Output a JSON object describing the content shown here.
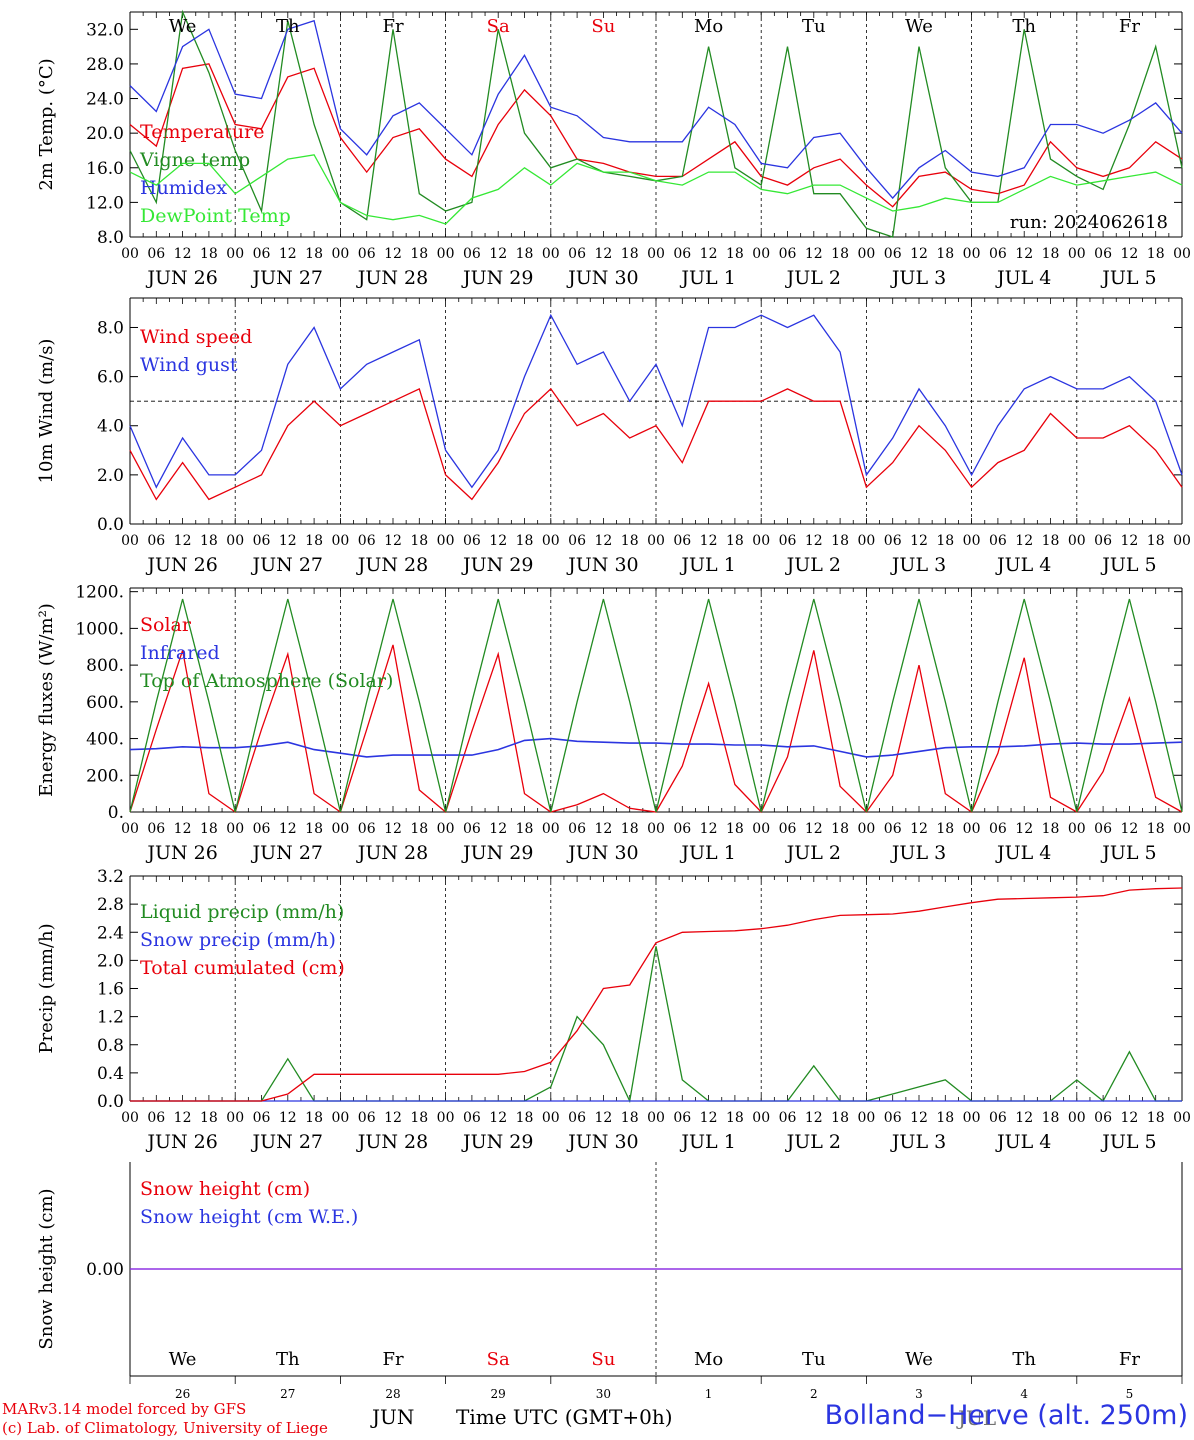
{
  "chart_data": [
    {
      "type": "line",
      "ylabel": "2m Temp. (°C)",
      "ylim": [
        8,
        34
      ],
      "yticks": [
        "8.0",
        "12.0",
        "16.0",
        "20.0",
        "24.0",
        "28.0",
        "32.0"
      ],
      "ytick_values": [
        8,
        12,
        16,
        20,
        24,
        28,
        32
      ],
      "x": [
        0,
        6,
        12,
        18,
        24,
        30,
        36,
        42,
        48,
        54,
        60,
        66,
        72,
        78,
        84,
        90,
        96,
        102,
        108,
        114,
        120,
        126,
        132,
        138,
        144,
        150,
        156,
        162,
        168,
        174,
        180,
        186,
        192,
        198,
        204,
        210,
        216,
        222,
        228,
        234,
        240
      ],
      "annotation": "run: 2024062618",
      "day_labels": [
        {
          "text": "We",
          "color": "#000000"
        },
        {
          "text": "Th",
          "color": "#000000"
        },
        {
          "text": "Fr",
          "color": "#000000"
        },
        {
          "text": "Sa",
          "color": "#e8000b"
        },
        {
          "text": "Su",
          "color": "#e8000b"
        },
        {
          "text": "Mo",
          "color": "#000000"
        },
        {
          "text": "Tu",
          "color": "#000000"
        },
        {
          "text": "We",
          "color": "#000000"
        },
        {
          "text": "Th",
          "color": "#000000"
        },
        {
          "text": "Fr",
          "color": "#000000"
        }
      ],
      "series": [
        {
          "name": "Temperature",
          "color": "#e8000b",
          "values": [
            21,
            18.5,
            27.5,
            28,
            21,
            20.5,
            26.5,
            27.5,
            19.5,
            15.5,
            19.5,
            20.5,
            17,
            15,
            21,
            25,
            22,
            17,
            16.5,
            15.5,
            15,
            15,
            17,
            19,
            15,
            14,
            16,
            17,
            14,
            11.5,
            15,
            15.5,
            13.5,
            13,
            14,
            19,
            16,
            15,
            16,
            19,
            17
          ]
        },
        {
          "name": "Vigne temp",
          "color": "#228b22",
          "values": [
            18,
            12,
            34,
            27,
            18,
            11,
            33,
            21,
            12,
            10,
            32,
            13,
            11,
            12,
            32,
            20,
            16,
            17,
            15.5,
            15,
            14.5,
            15,
            30,
            16,
            14,
            30,
            13,
            13,
            9,
            8,
            30,
            16,
            12,
            12,
            32,
            17,
            15,
            13.5,
            21,
            30,
            16
          ]
        },
        {
          "name": "Humidex",
          "color": "#2b35e0",
          "values": [
            25.5,
            22.5,
            30,
            32,
            24.5,
            24,
            32,
            33,
            20.5,
            17.5,
            22,
            23.5,
            20.5,
            17.5,
            24.5,
            29,
            23,
            22,
            19.5,
            19,
            19,
            19,
            23,
            21,
            16.5,
            16,
            19.5,
            20,
            16,
            12.5,
            16,
            18,
            15.5,
            15,
            16,
            21,
            21,
            20,
            21.5,
            23.5,
            20
          ]
        },
        {
          "name": "DewPoint Temp",
          "color": "#35e835",
          "values": [
            15.5,
            14,
            16.5,
            16.5,
            13,
            15,
            17,
            17.5,
            12,
            10.5,
            10,
            10.5,
            9.5,
            12.5,
            13.5,
            16,
            14,
            16.5,
            15.5,
            15.5,
            14.5,
            14,
            15.5,
            15.5,
            13.5,
            13,
            14,
            14,
            12.5,
            11,
            11.5,
            12.5,
            12,
            12,
            13.5,
            15,
            14,
            14.5,
            15,
            15.5,
            14
          ]
        }
      ]
    },
    {
      "type": "line",
      "ylabel": "10m Wind (m/s)",
      "ylim": [
        0,
        9.2
      ],
      "yticks": [
        "0.0",
        "2.0",
        "4.0",
        "6.0",
        "8.0"
      ],
      "ytick_values": [
        0,
        2,
        4,
        6,
        8
      ],
      "reference_line": 5,
      "x": [
        0,
        6,
        12,
        18,
        24,
        30,
        36,
        42,
        48,
        54,
        60,
        66,
        72,
        78,
        84,
        90,
        96,
        102,
        108,
        114,
        120,
        126,
        132,
        138,
        144,
        150,
        156,
        162,
        168,
        174,
        180,
        186,
        192,
        198,
        204,
        210,
        216,
        222,
        228,
        234,
        240
      ],
      "series": [
        {
          "name": "Wind speed",
          "color": "#e8000b",
          "values": [
            3,
            1,
            2.5,
            1,
            1.5,
            2,
            4,
            5,
            4,
            4.5,
            5,
            5.5,
            2,
            1,
            2.5,
            4.5,
            5.5,
            4,
            4.5,
            3.5,
            4,
            2.5,
            5,
            5,
            5,
            5.5,
            5,
            5,
            1.5,
            2.5,
            4,
            3,
            1.5,
            2.5,
            3,
            4.5,
            3.5,
            3.5,
            4,
            3,
            1.5
          ]
        },
        {
          "name": "Wind gust",
          "color": "#2b35e0",
          "values": [
            4,
            1.5,
            3.5,
            2,
            2,
            3,
            6.5,
            8,
            5.5,
            6.5,
            7,
            7.5,
            3,
            1.5,
            3,
            6,
            8.5,
            6.5,
            7,
            5,
            6.5,
            4,
            8,
            8,
            8.5,
            8,
            8.5,
            7,
            2,
            3.5,
            5.5,
            4,
            2,
            4,
            5.5,
            6,
            5.5,
            5.5,
            6,
            5,
            2
          ]
        }
      ]
    },
    {
      "type": "line",
      "ylabel": "Energy fluxes (W/m²)",
      "ylim": [
        0,
        1220
      ],
      "yticks": [
        "0.",
        "200.",
        "400.",
        "600.",
        "800.",
        "1000.",
        "1200."
      ],
      "ytick_values": [
        0,
        200,
        400,
        600,
        800,
        1000,
        1200
      ],
      "x": [
        0,
        6,
        12,
        18,
        24,
        30,
        36,
        42,
        48,
        54,
        60,
        66,
        72,
        78,
        84,
        90,
        96,
        102,
        108,
        114,
        120,
        126,
        132,
        138,
        144,
        150,
        156,
        162,
        168,
        174,
        180,
        186,
        192,
        198,
        204,
        210,
        216,
        222,
        228,
        234,
        240
      ],
      "series": [
        {
          "name": "Solar",
          "color": "#e8000b",
          "values": [
            0,
            450,
            880,
            100,
            0,
            450,
            860,
            100,
            0,
            450,
            910,
            120,
            0,
            440,
            860,
            100,
            0,
            40,
            100,
            20,
            0,
            250,
            700,
            150,
            0,
            300,
            880,
            140,
            0,
            200,
            800,
            100,
            0,
            320,
            840,
            80,
            0,
            220,
            620,
            80,
            0
          ]
        },
        {
          "name": "Infrared",
          "color": "#2b35e0",
          "values": [
            340,
            345,
            355,
            350,
            350,
            360,
            380,
            340,
            320,
            300,
            310,
            310,
            310,
            310,
            340,
            390,
            400,
            385,
            380,
            375,
            375,
            370,
            370,
            365,
            365,
            355,
            360,
            330,
            300,
            310,
            330,
            350,
            355,
            355,
            360,
            370,
            375,
            370,
            370,
            375,
            380
          ]
        },
        {
          "name": "Top of Atmosphere (Solar)",
          "color": "#228b22",
          "values": [
            0,
            600,
            1160,
            600,
            0,
            600,
            1160,
            600,
            0,
            600,
            1160,
            600,
            0,
            600,
            1160,
            600,
            0,
            600,
            1160,
            600,
            0,
            600,
            1160,
            600,
            0,
            600,
            1160,
            600,
            0,
            600,
            1160,
            600,
            0,
            600,
            1160,
            600,
            0,
            600,
            1160,
            600,
            0
          ]
        }
      ]
    },
    {
      "type": "line",
      "ylabel": "Precip (mm/h)",
      "ylim": [
        0,
        3.2
      ],
      "yticks": [
        "0.0",
        "0.4",
        "0.8",
        "1.2",
        "1.6",
        "2.0",
        "2.4",
        "2.8",
        "3.2"
      ],
      "ytick_values": [
        0,
        0.4,
        0.8,
        1.2,
        1.6,
        2.0,
        2.4,
        2.8,
        3.2
      ],
      "x": [
        0,
        6,
        12,
        18,
        24,
        30,
        36,
        42,
        48,
        54,
        60,
        66,
        72,
        78,
        84,
        90,
        96,
        102,
        108,
        114,
        120,
        126,
        132,
        138,
        144,
        150,
        156,
        162,
        168,
        174,
        180,
        186,
        192,
        198,
        204,
        210,
        216,
        222,
        228,
        234,
        240
      ],
      "series": [
        {
          "name": "Liquid precip (mm/h)",
          "color": "#228b22",
          "values": [
            0,
            0,
            0,
            0,
            0,
            0,
            0.6,
            0,
            0,
            0,
            0,
            0,
            0,
            0,
            0,
            0,
            0.2,
            1.2,
            0.8,
            0,
            2.2,
            0.3,
            0,
            0,
            0,
            0,
            0.5,
            0,
            0,
            0.1,
            0.2,
            0.3,
            0,
            0,
            0,
            0,
            0.3,
            0,
            0.7,
            0,
            0
          ]
        },
        {
          "name": "Snow precip (mm/h)",
          "color": "#2b35e0",
          "values": [
            0,
            0,
            0,
            0,
            0,
            0,
            0,
            0,
            0,
            0,
            0,
            0,
            0,
            0,
            0,
            0,
            0,
            0,
            0,
            0,
            0,
            0,
            0,
            0,
            0,
            0,
            0,
            0,
            0,
            0,
            0,
            0,
            0,
            0,
            0,
            0,
            0,
            0,
            0,
            0,
            0
          ]
        },
        {
          "name": "Total cumulated (cm)",
          "color": "#e8000b",
          "values": [
            0,
            0,
            0,
            0,
            0,
            0,
            0.1,
            0.38,
            0.38,
            0.38,
            0.38,
            0.38,
            0.38,
            0.38,
            0.38,
            0.42,
            0.55,
            1.0,
            1.6,
            1.65,
            2.25,
            2.4,
            2.41,
            2.42,
            2.45,
            2.5,
            2.58,
            2.64,
            2.65,
            2.66,
            2.7,
            2.76,
            2.82,
            2.87,
            2.88,
            2.89,
            2.9,
            2.92,
            3.0,
            3.02,
            3.03
          ]
        }
      ]
    },
    {
      "type": "line",
      "ylabel": "Snow height (cm)",
      "ylim": [
        -1,
        1
      ],
      "yticks": [
        "0.00"
      ],
      "ytick_values": [
        0
      ],
      "x": [
        0,
        240
      ],
      "series": [
        {
          "name": "Snow height (cm)",
          "color": "#e8000b",
          "values": [
            0,
            0
          ]
        },
        {
          "name": "Snow height (cm W.E.)",
          "color": "#2b35e0",
          "values": [
            0,
            0
          ]
        }
      ],
      "day_labels": [
        {
          "text": "We",
          "color": "#000000"
        },
        {
          "text": "Th",
          "color": "#000000"
        },
        {
          "text": "Fr",
          "color": "#000000"
        },
        {
          "text": "Sa",
          "color": "#e8000b"
        },
        {
          "text": "Su",
          "color": "#e8000b"
        },
        {
          "text": "Mo",
          "color": "#000000"
        },
        {
          "text": "Tu",
          "color": "#000000"
        },
        {
          "text": "We",
          "color": "#000000"
        },
        {
          "text": "Th",
          "color": "#000000"
        },
        {
          "text": "Fr",
          "color": "#000000"
        }
      ],
      "day_numbers": [
        "26",
        "27",
        "28",
        "29",
        "30",
        "1",
        "2",
        "3",
        "4",
        "5"
      ]
    }
  ],
  "x_axis": {
    "hour_ticks": [
      "00",
      "06",
      "12",
      "18"
    ],
    "date_labels": [
      "JUN 26",
      "JUN 27",
      "JUN 28",
      "JUN 29",
      "JUN 30",
      "JUL  1",
      "JUL  2",
      "JUL  3",
      "JUL  4",
      "JUL  5"
    ],
    "final_tick": "00"
  },
  "footer": {
    "model_credit": "MARv3.14 model forced by GFS",
    "lab_credit": "(c) Lab. of Climatology, University of Liege",
    "month": "JUN",
    "x_label": "Time UTC (GMT+0h)",
    "station": "Bolland−Herve (alt. 250m)",
    "overlapped_month": "JUL"
  },
  "colors": {
    "red": "#e8000b",
    "green": "#228b22",
    "blue": "#2b35e0",
    "lightgreen": "#35e835"
  }
}
